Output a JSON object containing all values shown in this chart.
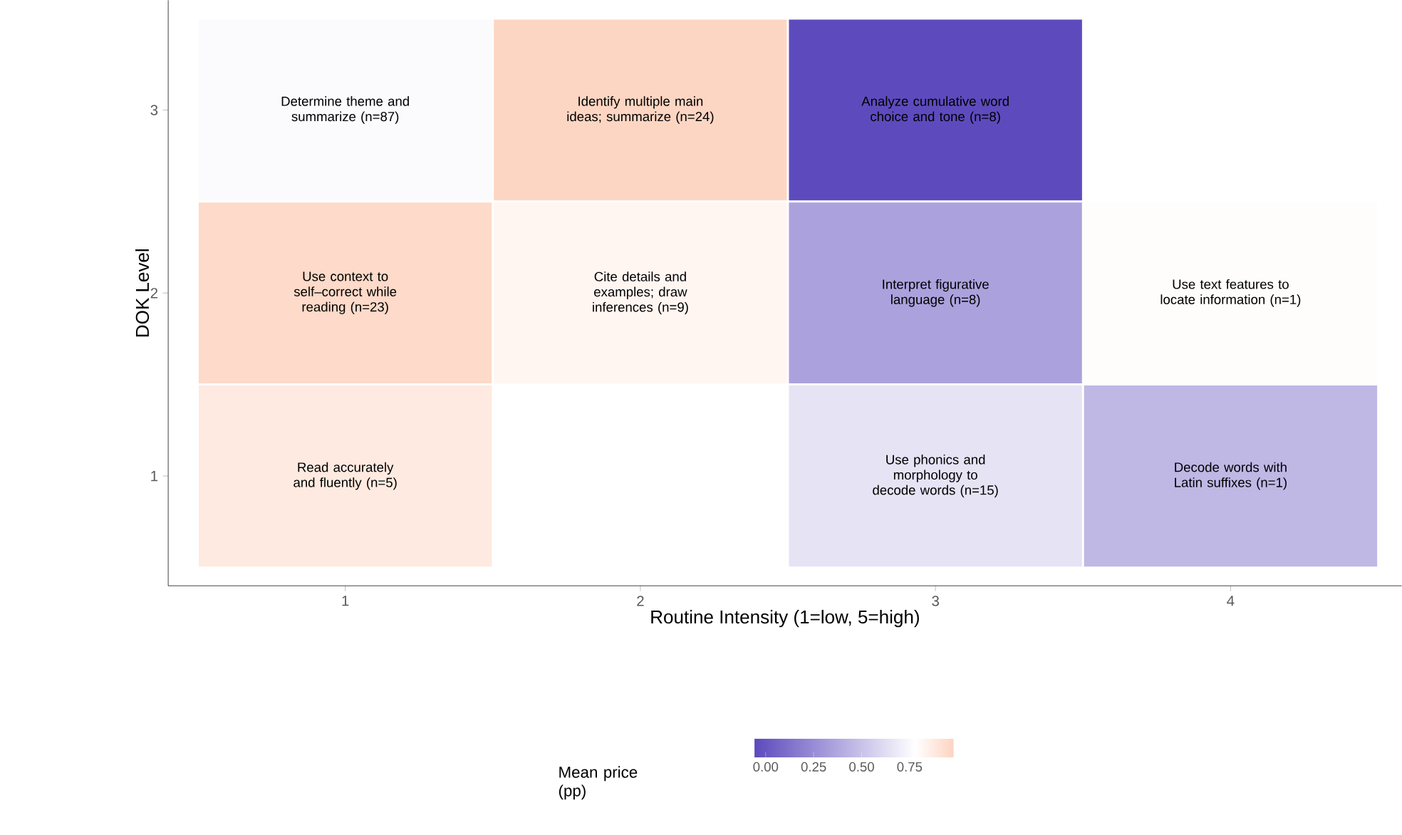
{
  "chart_data": {
    "type": "heatmap",
    "xlabel": "Routine Intensity (1=low, 5=high)",
    "ylabel": "DOK Level",
    "legend_title": "Mean price (pp)",
    "categories": [
      "1",
      "2",
      "3",
      "4"
    ],
    "y_categories": [
      "3",
      "2",
      "1"
    ],
    "cells": [
      [
        0.76,
        0.97,
        -0.05,
        null
      ],
      [
        0.95,
        0.82,
        0.35,
        0.79
      ],
      [
        0.88,
        null,
        0.65,
        0.45
      ]
    ],
    "annotations": [
      "Determine theme and summarize (n=87)",
      "Identify multiple main ideas; summarize (n=24)",
      "Analyze cumulative word choice and tone (n=8)",
      "Use context to self–correct while reading (n=23)",
      "Cite details and examples; draw inferences (n=9)",
      "Interpret figurative language (n=8)",
      "Use text features to locate information (n=1)",
      "Read accurately and fluently (n=5)",
      "Use phonics and morphology to decode words (n=15)",
      "Decode words with Latin suffixes (n=1)"
    ],
    "clim": [
      -0.06,
      0.98
    ],
    "cticks": [
      {
        "value": 0,
        "label": "0.00"
      },
      {
        "value": 0.25,
        "label": "0.25"
      },
      {
        "value": 0.5,
        "label": "0.50"
      },
      {
        "value": 0.75,
        "label": "0.75"
      }
    ]
  }
}
